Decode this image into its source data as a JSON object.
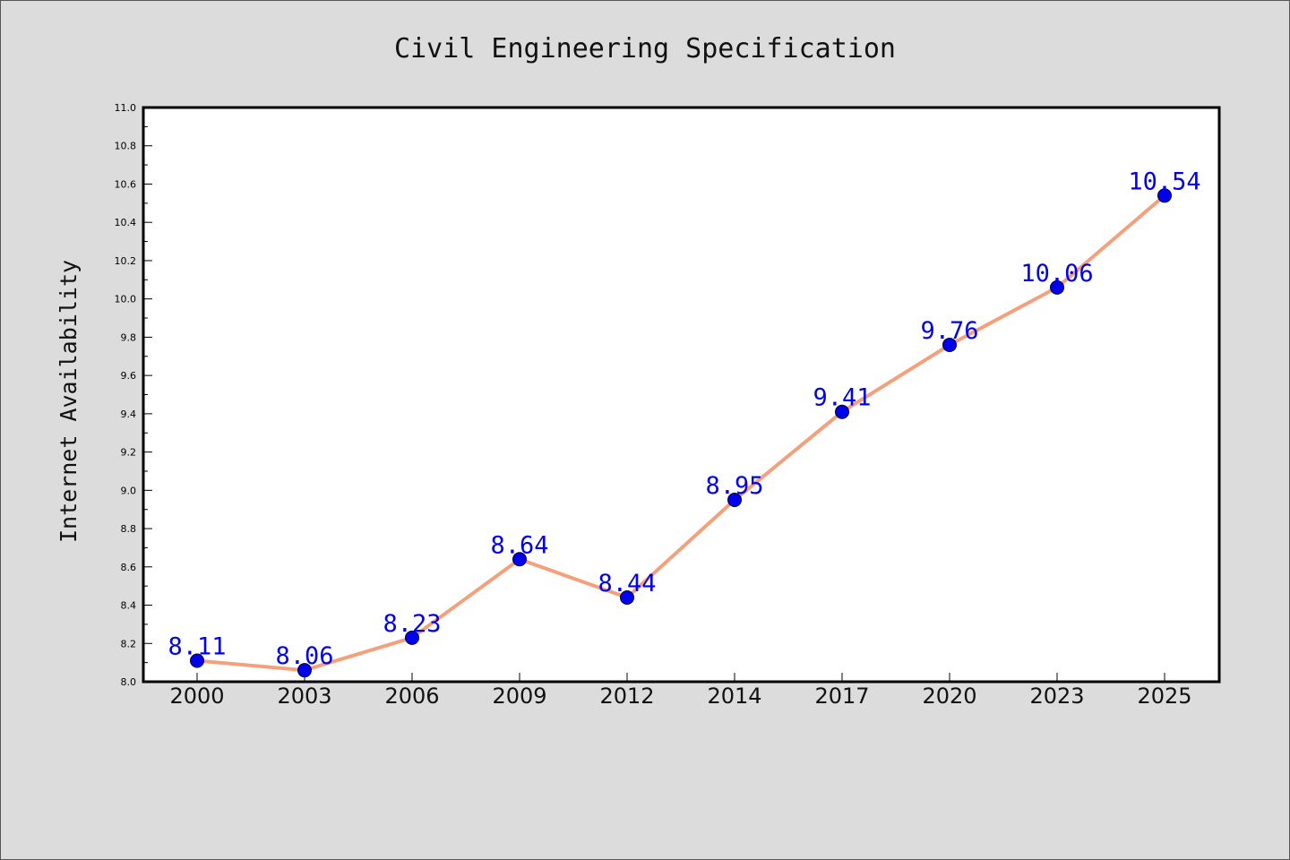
{
  "chart_data": {
    "type": "line",
    "title": "Civil Engineering Specification",
    "xlabel": "",
    "ylabel": "Internet Availability",
    "categories": [
      "2000",
      "2003",
      "2006",
      "2009",
      "2012",
      "2014",
      "2017",
      "2020",
      "2023",
      "2025"
    ],
    "series": [
      {
        "values": [
          8.11,
          8.06,
          8.23,
          8.64,
          8.44,
          8.95,
          9.41,
          9.76,
          10.06,
          10.54
        ],
        "data_labels": [
          "8.11",
          "8.06",
          "8.23",
          "8.64",
          "8.44",
          "8.95",
          "9.41",
          "9.76",
          "10.06",
          "10.54"
        ]
      }
    ],
    "ylim": [
      8.0,
      11.0
    ],
    "yticks": [
      "8.0",
      "8.2",
      "8.4",
      "8.6",
      "8.8",
      "9.0",
      "9.2",
      "9.4",
      "9.6",
      "9.8",
      "10.0",
      "10.2",
      "10.4",
      "10.6",
      "10.8",
      "11.0"
    ],
    "grid": false,
    "legend": "none",
    "colors": {
      "line": "#f4a07c",
      "marker": "#0000ee",
      "label": "#0000ee",
      "plot_background": "#ffffff",
      "figure_background": "#dcdcdc"
    }
  }
}
